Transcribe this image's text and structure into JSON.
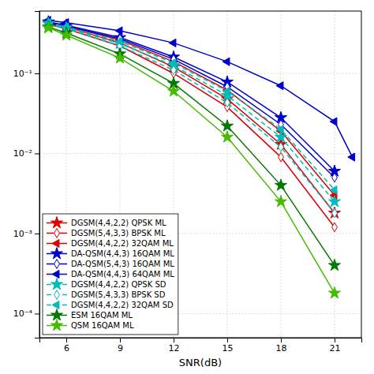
{
  "chart_data": {
    "type": "line",
    "xlabel": "SNR(dB)",
    "log": "y",
    "grid": true,
    "legend": "lower left",
    "xlim": [
      4.5,
      22.5
    ],
    "xticks": [
      6,
      9,
      12,
      15,
      18,
      21
    ],
    "ylim": [
      5e-05,
      0.6
    ],
    "yticks": [
      {
        "value": 0.0001,
        "label": "10⁻⁴"
      },
      {
        "value": 0.001,
        "label": "10⁻³"
      },
      {
        "value": 0.01,
        "label": "10⁻²"
      },
      {
        "value": 0.1,
        "label": "10⁻¹"
      }
    ],
    "series": [
      {
        "name": "DGSM(4,4,2,2) QPSK ML",
        "color": "#dd0000",
        "line_style": "solid",
        "marker": "star",
        "x": [
          5,
          6,
          9,
          12,
          15,
          18,
          21
        ],
        "values": [
          0.42,
          0.38,
          0.24,
          0.12,
          0.048,
          0.013,
          0.0018
        ]
      },
      {
        "name": "DGSM(5,4,3,3) BPSK ML",
        "color": "#dd0000",
        "line_style": "solid",
        "marker": "diamond-open",
        "x": [
          5,
          6,
          9,
          12,
          15,
          18,
          21
        ],
        "values": [
          0.41,
          0.36,
          0.22,
          0.1,
          0.038,
          0.009,
          0.0012
        ]
      },
      {
        "name": "DGSM(4,4,2,2) 32QAM ML",
        "color": "#dd0000",
        "line_style": "solid",
        "marker": "triangle-left",
        "x": [
          5,
          6,
          9,
          12,
          15,
          18,
          21
        ],
        "values": [
          0.43,
          0.39,
          0.26,
          0.14,
          0.062,
          0.019,
          0.003
        ]
      },
      {
        "name": "DA-QSM(4,4,3) 16QAM ML",
        "color": "#0000cc",
        "line_style": "solid",
        "marker": "star",
        "x": [
          5,
          6,
          9,
          12,
          15,
          18,
          21
        ],
        "values": [
          0.44,
          0.4,
          0.28,
          0.16,
          0.078,
          0.028,
          0.006
        ]
      },
      {
        "name": "DA-QSM(5,4,3) 16QAM ML",
        "color": "#0000cc",
        "line_style": "solid",
        "marker": "diamond-open",
        "x": [
          5,
          6,
          9,
          12,
          15,
          18,
          21
        ],
        "values": [
          0.43,
          0.39,
          0.27,
          0.15,
          0.068,
          0.023,
          0.005
        ]
      },
      {
        "name": "DA-QSM(4,4,3) 64QAM ML",
        "color": "#0000cc",
        "line_style": "solid",
        "marker": "triangle-left",
        "x": [
          5,
          6,
          9,
          12,
          15,
          18,
          21,
          22
        ],
        "values": [
          0.46,
          0.43,
          0.34,
          0.24,
          0.14,
          0.07,
          0.025,
          0.009
        ]
      },
      {
        "name": "DGSM(4,4,2,2) QPSK SD",
        "color": "#00bbbb",
        "line_style": "dashed",
        "marker": "star",
        "x": [
          5,
          6,
          9,
          12,
          15,
          18,
          21
        ],
        "values": [
          0.42,
          0.37,
          0.235,
          0.125,
          0.053,
          0.016,
          0.0025
        ]
      },
      {
        "name": "DGSM(5,4,3,3) BPSK SD",
        "color": "#00bbbb",
        "line_style": "dashed",
        "marker": "diamond-open",
        "x": [
          5,
          6,
          9,
          12,
          15,
          18,
          21
        ],
        "values": [
          0.41,
          0.36,
          0.22,
          0.11,
          0.043,
          0.012,
          0.0018
        ]
      },
      {
        "name": "DGSM(4,4,2,2) 32QAM SD",
        "color": "#00bbbb",
        "line_style": "dashed",
        "marker": "triangle-left",
        "x": [
          5,
          6,
          9,
          12,
          15,
          18,
          21
        ],
        "values": [
          0.43,
          0.38,
          0.25,
          0.135,
          0.06,
          0.02,
          0.0035
        ]
      },
      {
        "name": "ESM 16QAM ML",
        "color": "#007700",
        "line_style": "solid",
        "marker": "star",
        "x": [
          5,
          6,
          9,
          12,
          15,
          18,
          21
        ],
        "values": [
          0.38,
          0.32,
          0.175,
          0.075,
          0.022,
          0.004,
          0.0004
        ]
      },
      {
        "name": "QSM 16QAM ML",
        "color": "#44bb00",
        "line_style": "solid",
        "marker": "star",
        "x": [
          5,
          6,
          9,
          12,
          15,
          18,
          21
        ],
        "values": [
          0.37,
          0.3,
          0.155,
          0.06,
          0.016,
          0.0025,
          0.00018
        ]
      }
    ]
  }
}
